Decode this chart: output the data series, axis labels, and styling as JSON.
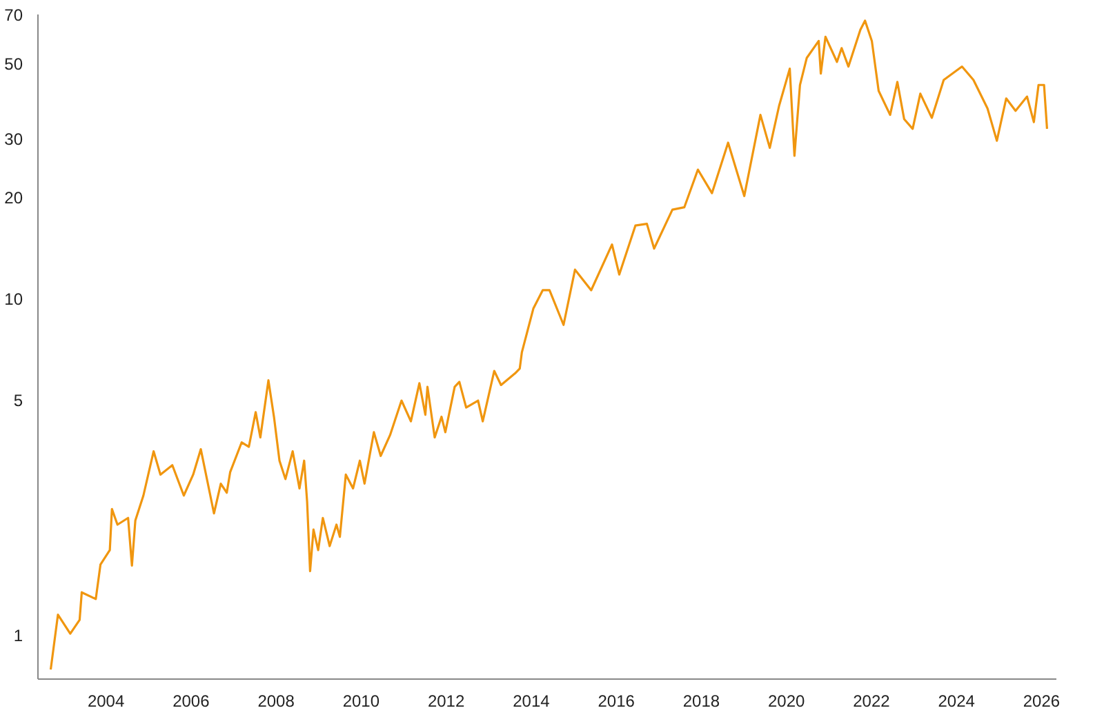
{
  "chart_data": {
    "type": "line",
    "log": "y",
    "grid": false,
    "marker": "none",
    "line_style": "solid",
    "xlim": [
      2002.4,
      2026.35
    ],
    "ylim": [
      0.74,
      70
    ],
    "xticks": [
      2004,
      2006,
      2008,
      2010,
      2012,
      2014,
      2016,
      2018,
      2020,
      2022,
      2024,
      2026
    ],
    "yticks": [
      1,
      5,
      10,
      20,
      30,
      50,
      70
    ],
    "series": [
      {
        "color": "#f0960f",
        "x": [
          2002.7,
          2002.87,
          2003.16,
          2003.38,
          2003.43,
          2003.76,
          2003.87,
          2004.09,
          2004.14,
          2004.27,
          2004.52,
          2004.61,
          2004.69,
          2004.88,
          2005.12,
          2005.28,
          2005.56,
          2005.83,
          2006.05,
          2006.23,
          2006.54,
          2006.7,
          2006.84,
          2006.92,
          2007.19,
          2007.36,
          2007.52,
          2007.63,
          2007.82,
          2007.95,
          2008.08,
          2008.22,
          2008.39,
          2008.55,
          2008.66,
          2008.73,
          2008.8,
          2008.88,
          2008.99,
          2009.1,
          2009.26,
          2009.42,
          2009.5,
          2009.64,
          2009.81,
          2009.97,
          2010.08,
          2010.3,
          2010.46,
          2010.68,
          2010.95,
          2011.17,
          2011.37,
          2011.51,
          2011.56,
          2011.73,
          2011.89,
          2011.98,
          2012.2,
          2012.31,
          2012.47,
          2012.75,
          2012.86,
          2013.13,
          2013.29,
          2013.62,
          2013.73,
          2013.78,
          2014.05,
          2014.27,
          2014.43,
          2014.76,
          2015.03,
          2015.41,
          2015.9,
          2016.07,
          2016.45,
          2016.72,
          2016.89,
          2017.32,
          2017.6,
          2017.92,
          2018.25,
          2018.63,
          2019.01,
          2019.39,
          2019.61,
          2019.83,
          2020.08,
          2020.19,
          2020.32,
          2020.48,
          2020.76,
          2020.81,
          2020.92,
          2021.19,
          2021.3,
          2021.46,
          2021.74,
          2021.85,
          2022.01,
          2022.17,
          2022.44,
          2022.61,
          2022.77,
          2022.97,
          2023.15,
          2023.42,
          2023.7,
          2024.13,
          2024.4,
          2024.73,
          2024.95,
          2025.17,
          2025.39,
          2025.66,
          2025.82,
          2025.93,
          2026.06,
          2026.13
        ],
        "values": [
          0.79,
          1.15,
          1.01,
          1.11,
          1.34,
          1.28,
          1.62,
          1.79,
          2.37,
          2.13,
          2.23,
          1.61,
          2.19,
          2.6,
          3.52,
          3.0,
          3.2,
          2.6,
          3.0,
          3.57,
          2.3,
          2.82,
          2.65,
          3.05,
          3.74,
          3.63,
          4.6,
          3.87,
          5.72,
          4.46,
          3.3,
          2.91,
          3.52,
          2.73,
          3.3,
          2.49,
          1.55,
          2.06,
          1.79,
          2.23,
          1.84,
          2.13,
          1.96,
          3.0,
          2.73,
          3.3,
          2.82,
          4.01,
          3.41,
          3.93,
          4.98,
          4.32,
          5.61,
          4.52,
          5.47,
          3.87,
          4.46,
          4.01,
          5.47,
          5.66,
          4.75,
          4.98,
          4.32,
          6.1,
          5.54,
          6.0,
          6.2,
          6.93,
          9.35,
          10.6,
          10.6,
          8.36,
          12.2,
          10.6,
          14.5,
          11.8,
          16.5,
          16.7,
          14.1,
          18.4,
          18.7,
          24.2,
          20.6,
          29.1,
          20.2,
          35.2,
          28.1,
          37.5,
          48.3,
          26.6,
          43.2,
          52,
          58.4,
          46.7,
          60.1,
          50.6,
          55.6,
          49,
          63,
          67.1,
          58.4,
          41.5,
          35.2,
          44.1,
          34.2,
          32,
          40.7,
          34.5,
          44.7,
          49,
          44.7,
          36.8,
          29.5,
          39.4,
          36.2,
          39.9,
          33.5,
          43.2,
          43.2,
          32
        ]
      }
    ]
  }
}
